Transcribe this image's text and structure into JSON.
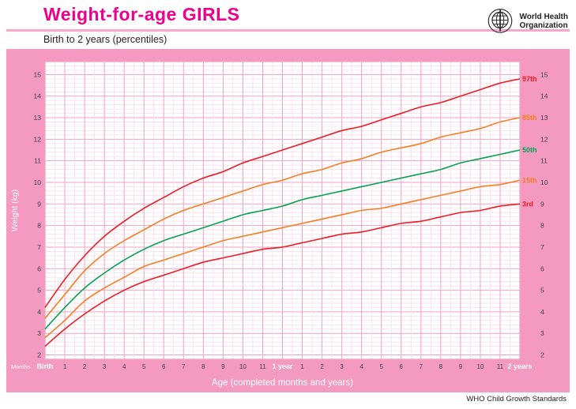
{
  "header": {
    "title": "Weight-for-age GIRLS",
    "subtitle": "Birth to 2 years (percentiles)",
    "logo_line1": "World Health",
    "logo_line2": "Organization"
  },
  "footer": {
    "credit": "WHO Child Growth Standards"
  },
  "chart_data": {
    "type": "line",
    "title": "Weight-for-age GIRLS",
    "subtitle": "Birth to 2 years (percentiles)",
    "xlabel": "Age (completed months and years)",
    "ylabel": "Weight (kg)",
    "x_unit_label": "Months",
    "x_months": [
      0,
      1,
      2,
      3,
      4,
      5,
      6,
      7,
      8,
      9,
      10,
      11,
      12,
      13,
      14,
      15,
      16,
      17,
      18,
      19,
      20,
      21,
      22,
      23,
      24
    ],
    "x_tick_labels": [
      "Birth",
      "1",
      "2",
      "3",
      "4",
      "5",
      "6",
      "7",
      "8",
      "9",
      "10",
      "11",
      "1 year",
      "1",
      "2",
      "3",
      "4",
      "5",
      "6",
      "7",
      "8",
      "9",
      "10",
      "11",
      "2 years"
    ],
    "y_ticks": [
      2,
      3,
      4,
      5,
      6,
      7,
      8,
      9,
      10,
      11,
      12,
      13,
      14,
      15
    ],
    "ylim": [
      1.8,
      15.6
    ],
    "grid": true,
    "legend_position": "right-end-labels",
    "colors": {
      "panel_pink": "#f49ac1",
      "title_magenta": "#ec008c",
      "grid_minor": "#fbd9e7",
      "grid_major": "#f2a2c4",
      "tick_text": "#414042",
      "axis_text": "#ffffff"
    },
    "series": [
      {
        "name": "97th",
        "color": "#ed1c24",
        "values": [
          4.2,
          5.5,
          6.6,
          7.5,
          8.2,
          8.8,
          9.3,
          9.8,
          10.2,
          10.5,
          10.9,
          11.2,
          11.5,
          11.8,
          12.1,
          12.4,
          12.6,
          12.9,
          13.2,
          13.5,
          13.7,
          14.0,
          14.3,
          14.6,
          14.8
        ]
      },
      {
        "name": "85th",
        "color": "#f57e20",
        "values": [
          3.7,
          4.8,
          5.9,
          6.7,
          7.3,
          7.8,
          8.3,
          8.7,
          9.0,
          9.3,
          9.6,
          9.9,
          10.1,
          10.4,
          10.6,
          10.9,
          11.1,
          11.4,
          11.6,
          11.8,
          12.1,
          12.3,
          12.5,
          12.8,
          13.0
        ]
      },
      {
        "name": "50th",
        "color": "#00a551",
        "values": [
          3.2,
          4.2,
          5.1,
          5.8,
          6.4,
          6.9,
          7.3,
          7.6,
          7.9,
          8.2,
          8.5,
          8.7,
          8.9,
          9.2,
          9.4,
          9.6,
          9.8,
          10.0,
          10.2,
          10.4,
          10.6,
          10.9,
          11.1,
          11.3,
          11.5
        ]
      },
      {
        "name": "15th",
        "color": "#f57e20",
        "values": [
          2.8,
          3.6,
          4.5,
          5.1,
          5.6,
          6.1,
          6.4,
          6.7,
          7.0,
          7.3,
          7.5,
          7.7,
          7.9,
          8.1,
          8.3,
          8.5,
          8.7,
          8.8,
          9.0,
          9.2,
          9.4,
          9.6,
          9.8,
          9.9,
          10.1
        ]
      },
      {
        "name": "3rd",
        "color": "#ed1c24",
        "values": [
          2.4,
          3.2,
          3.9,
          4.5,
          5.0,
          5.4,
          5.7,
          6.0,
          6.3,
          6.5,
          6.7,
          6.9,
          7.0,
          7.2,
          7.4,
          7.6,
          7.7,
          7.9,
          8.1,
          8.2,
          8.4,
          8.6,
          8.7,
          8.9,
          9.0
        ]
      }
    ]
  }
}
